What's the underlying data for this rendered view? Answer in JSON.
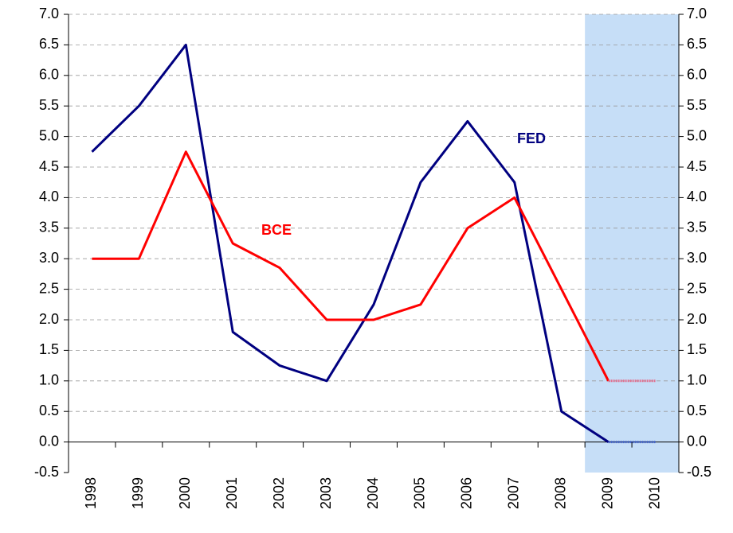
{
  "chart_data": {
    "type": "line",
    "categories": [
      "1998",
      "1999",
      "2000",
      "2001",
      "2002",
      "2003",
      "2004",
      "2005",
      "2006",
      "2007",
      "2008",
      "2009",
      "2010"
    ],
    "series": [
      {
        "name": "FED",
        "color": "#000080",
        "forecast_color": "#4466cc",
        "values": [
          4.75,
          5.5,
          6.5,
          1.8,
          1.25,
          1.0,
          2.25,
          4.25,
          5.25,
          4.25,
          0.5,
          0.0,
          0.0
        ]
      },
      {
        "name": "BCE",
        "color": "#ff0000",
        "forecast_color": "#e07090",
        "values": [
          3.0,
          3.0,
          4.75,
          3.25,
          2.85,
          2.0,
          2.0,
          2.25,
          3.5,
          4.0,
          2.5,
          1.0,
          1.0
        ]
      }
    ],
    "forecast_start": "2009",
    "shade_color": "#bcd8f6",
    "ylim": [
      -0.5,
      7.0
    ],
    "yticks": [
      {
        "value": -0.5,
        "label": "-0.5"
      },
      {
        "value": 0,
        "label": "0.0"
      },
      0.5,
      {
        "value": 1,
        "label": "1.0"
      },
      1.5,
      {
        "value": 2,
        "label": "2.0"
      },
      2.5,
      {
        "value": 3,
        "label": "3.0"
      },
      3.5,
      {
        "value": 4,
        "label": "4.0"
      },
      4.5,
      {
        "value": 5,
        "label": "5.0"
      },
      5.5,
      {
        "value": 6,
        "label": "6.0"
      },
      6.5,
      {
        "value": 7,
        "label": "7.0"
      }
    ],
    "y2lim": [
      -0.5,
      7.0
    ],
    "y2ticks": [
      {
        "value": -0.5,
        "label": "-0.5"
      },
      {
        "value": 0,
        "label": "0.0"
      },
      0.5,
      {
        "value": 1,
        "label": "1.0"
      },
      1.5,
      {
        "value": 2,
        "label": "2.0"
      },
      2.5,
      {
        "value": 3,
        "label": "3.0"
      },
      3.5,
      {
        "value": 4,
        "label": "4.0"
      },
      4.5,
      {
        "value": 5,
        "label": "5.0"
      },
      5.5,
      {
        "value": 6,
        "label": "6.0"
      },
      6.5,
      {
        "value": 7,
        "label": "7.0"
      }
    ],
    "grid": true
  }
}
